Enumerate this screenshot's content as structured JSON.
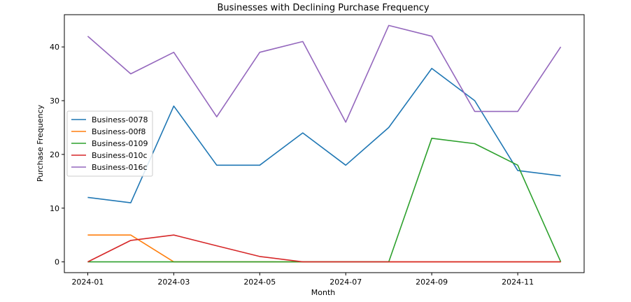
{
  "chart_data": {
    "type": "line",
    "title": "Businesses with Declining Purchase Frequency",
    "xlabel": "Month",
    "ylabel": "Purchase Frequency",
    "x": [
      "2024-01",
      "2024-02",
      "2024-03",
      "2024-04",
      "2024-05",
      "2024-06",
      "2024-07",
      "2024-08",
      "2024-09",
      "2024-10",
      "2024-11",
      "2024-12"
    ],
    "x_ticks": [
      "2024-01",
      "2024-03",
      "2024-05",
      "2024-07",
      "2024-09",
      "2024-11"
    ],
    "y_ticks": [
      0,
      10,
      20,
      30,
      40
    ],
    "ylim": [
      -2,
      46
    ],
    "grid": false,
    "legend_position": "center-left",
    "series": [
      {
        "name": "Business-0078",
        "color": "#1f77b4",
        "values": [
          12,
          11,
          29,
          18,
          18,
          24,
          18,
          25,
          36,
          30,
          17,
          16
        ]
      },
      {
        "name": "Business-00f8",
        "color": "#ff7f0e",
        "values": [
          5,
          5,
          0,
          0,
          0,
          0,
          0,
          0,
          0,
          0,
          0,
          0
        ]
      },
      {
        "name": "Business-0109",
        "color": "#2ca02c",
        "values": [
          0,
          0,
          0,
          0,
          0,
          0,
          0,
          0,
          23,
          22,
          18,
          0
        ]
      },
      {
        "name": "Business-010c",
        "color": "#d62728",
        "values": [
          0,
          4,
          5,
          3,
          1,
          0,
          0,
          0,
          0,
          0,
          0,
          0
        ]
      },
      {
        "name": "Business-016c",
        "color": "#9467bd",
        "values": [
          42,
          35,
          39,
          27,
          39,
          41,
          26,
          44,
          42,
          28,
          28,
          40
        ]
      }
    ]
  }
}
